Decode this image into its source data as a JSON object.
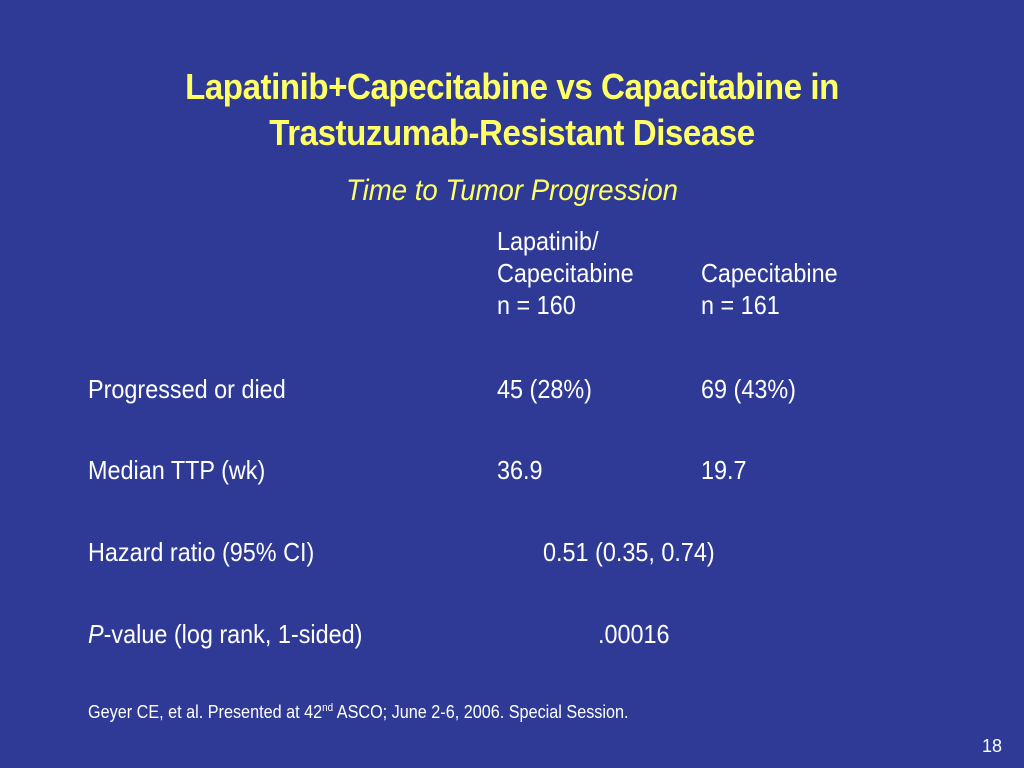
{
  "slide": {
    "title_line1": "Lapatinib+Capecitabine vs Capacitabine in",
    "title_line2": "Trastuzumab-Resistant Disease",
    "subtitle": "Time to Tumor Progression"
  },
  "table": {
    "col1_header": [
      "Lapatinib/",
      "Capecitabine",
      "n = 160"
    ],
    "col2_header": [
      "Capecitabine",
      "n = 161"
    ],
    "rows": [
      {
        "label": "Progressed or died",
        "col1": "45 (28%)",
        "col2": "69 (43%)"
      },
      {
        "label": "Median TTP (wk)",
        "col1": "36.9",
        "col2": "19.7"
      },
      {
        "label": "Hazard ratio (95% CI)",
        "combined": "0.51 (0.35, 0.74)"
      },
      {
        "label_italic": "P",
        "label_rest": "-value (log rank, 1-sided)",
        "combined": ".00016"
      }
    ]
  },
  "footnote": {
    "pre": "Geyer CE, et al. Presented at 42",
    "sup": "nd",
    "post": " ASCO; June 2-6, 2006. Special Session."
  },
  "page_number": "18",
  "colors": {
    "background": "#2e3a96",
    "title": "#ffff66",
    "text": "#ffffff"
  }
}
